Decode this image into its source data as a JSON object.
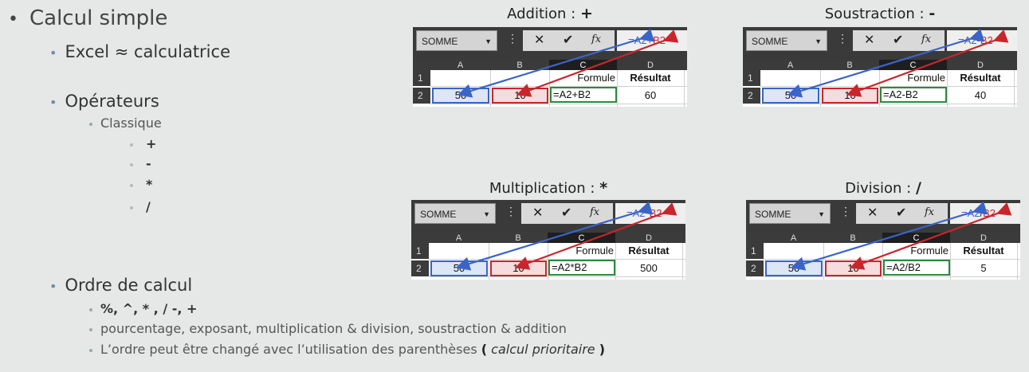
{
  "main": {
    "title": "Calcul simple",
    "items": {
      "excel": "Excel ≈ calculatrice",
      "operateurs": "Opérateurs",
      "classique": "Classique",
      "ops": [
        "+",
        "-",
        "*",
        "/"
      ],
      "ordre": "Ordre de calcul",
      "ordre_symbols": "%, ^, * , / -, +",
      "ordre_words": "pourcentage, exposant, multiplication & division, soustraction & addition",
      "ordre_paren_pre": "L’ordre peut être changé avec l’utilisation des parenthèses",
      "paren_open": "(",
      "paren_mid": "calcul prioritaire",
      "paren_close": ")"
    }
  },
  "shots": [
    {
      "title": "Addition : ",
      "op": "+",
      "namebox": "SOMME",
      "f_a": "=A2",
      "f_op": "+",
      "f_b": "B2",
      "cols": [
        "A",
        "B",
        "C",
        "D"
      ],
      "rows": [
        "1",
        "2"
      ],
      "h_formule": "Formule",
      "h_resultat": "Résultat",
      "a2": "50",
      "b2": "10",
      "c2": "=A2+B2",
      "d2": "60"
    },
    {
      "title": "Soustraction : ",
      "op": "-",
      "namebox": "SOMME",
      "f_a": "=A2",
      "f_op": "-",
      "f_b": "B2",
      "cols": [
        "A",
        "B",
        "C",
        "D"
      ],
      "rows": [
        "1",
        "2"
      ],
      "h_formule": "Formule",
      "h_resultat": "Résultat",
      "a2": "50",
      "b2": "10",
      "c2": "=A2-B2",
      "d2": "40"
    },
    {
      "title": "Multiplication : ",
      "op": "*",
      "namebox": "SOMME",
      "f_a": "=A2",
      "f_op": "*",
      "f_b": "B2",
      "cols": [
        "A",
        "B",
        "C",
        "D"
      ],
      "rows": [
        "1",
        "2"
      ],
      "h_formule": "Formule",
      "h_resultat": "Résultat",
      "a2": "50",
      "b2": "10",
      "c2": "=A2*B2",
      "d2": "500"
    },
    {
      "title": "Division : ",
      "op": "/",
      "namebox": "SOMME",
      "f_a": "=A2",
      "f_op": "/",
      "f_b": "B2",
      "cols": [
        "A",
        "B",
        "C",
        "D"
      ],
      "rows": [
        "1",
        "2"
      ],
      "h_formule": "Formule",
      "h_resultat": "Résultat",
      "a2": "50",
      "b2": "10",
      "c2": "=A2/B2",
      "d2": "5"
    }
  ],
  "colors": {
    "blue": "#3a64c8",
    "red": "#c8262c",
    "green": "#2b8a3e"
  }
}
